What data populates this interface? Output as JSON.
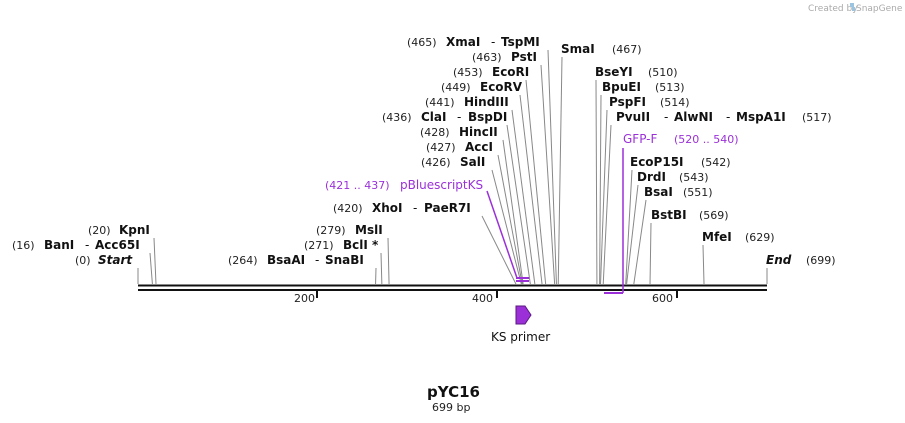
{
  "header": {
    "created_by": "Created by",
    "brand": "SnapGene"
  },
  "map": {
    "name": "pYC16",
    "size_label": "699 bp",
    "length": 699,
    "start_label": "Start",
    "start_pos": "(0)",
    "end_label": "End",
    "end_pos": "(699)",
    "ticks": [
      "200",
      "400",
      "600"
    ]
  },
  "enzymes": [
    {
      "pos": "(20)",
      "name": "KpnI",
      "site": 20
    },
    {
      "pos": "(16)",
      "name": "BanI",
      "alt": "Acc65I",
      "site": 16
    },
    {
      "pos": "(279)",
      "name": "MslI",
      "site": 279
    },
    {
      "pos": "(271)",
      "name": "BclI *",
      "site": 271
    },
    {
      "pos": "(264)",
      "name": "BsaAI",
      "alt": "SnaBI",
      "site": 264
    },
    {
      "pos": "(420)",
      "name": "XhoI",
      "alt": "PaeR7I",
      "site": 420
    },
    {
      "pos": "(426)",
      "name": "SalI",
      "site": 426
    },
    {
      "pos": "(427)",
      "name": "AccI",
      "site": 427
    },
    {
      "pos": "(428)",
      "name": "HincII",
      "site": 428
    },
    {
      "pos": "(436)",
      "name": "ClaI",
      "alt": "BspDI",
      "site": 436
    },
    {
      "pos": "(441)",
      "name": "HindIII",
      "site": 441
    },
    {
      "pos": "(449)",
      "name": "EcoRV",
      "site": 449
    },
    {
      "pos": "(453)",
      "name": "EcoRI",
      "site": 453
    },
    {
      "pos": "(463)",
      "name": "PstI",
      "site": 463
    },
    {
      "pos": "(465)",
      "name": "XmaI",
      "alt": "TspMI",
      "site": 465
    },
    {
      "pos": "(467)",
      "name": "SmaI",
      "site": 467
    },
    {
      "pos": "(510)",
      "name": "BseYI",
      "site": 510
    },
    {
      "pos": "(513)",
      "name": "BpuEI",
      "site": 513
    },
    {
      "pos": "(514)",
      "name": "PspFI",
      "site": 514
    },
    {
      "pos": "(517)",
      "name": "PvuII",
      "alt": "AlwNI",
      "alt2": "MspA1I",
      "site": 517
    },
    {
      "pos": "(542)",
      "name": "EcoP15I",
      "site": 542
    },
    {
      "pos": "(543)",
      "name": "DrdI",
      "site": 543
    },
    {
      "pos": "(551)",
      "name": "BsaI",
      "site": 551
    },
    {
      "pos": "(569)",
      "name": "BstBI",
      "site": 569
    },
    {
      "pos": "(629)",
      "name": "MfeI",
      "site": 629
    }
  ],
  "primer_sites": [
    {
      "name": "pBluescriptKS",
      "range": "(421 .. 437)",
      "start": 421,
      "end": 437
    },
    {
      "name": "GFP-F",
      "range": "(520 .. 540)",
      "start": 520,
      "end": 540
    }
  ],
  "features": [
    {
      "name": "KS primer",
      "start": 421,
      "end": 437,
      "direction": "forward",
      "color": "#9b30d9"
    }
  ],
  "colors": {
    "primer": "#9b30d9",
    "backbone": "#111111",
    "leader": "#888888"
  }
}
